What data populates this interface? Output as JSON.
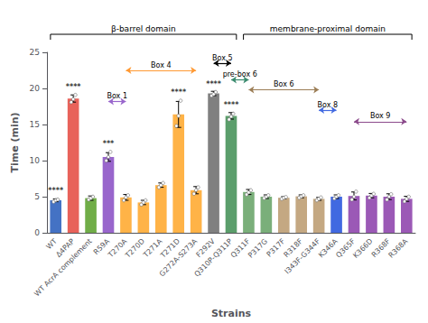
{
  "chart_data": {
    "type": "bar",
    "categories": [
      "WT",
      "Δ4PAP",
      "WT AcrA complement",
      "R59A",
      "T270A",
      "T270D",
      "T271A",
      "T271D",
      "G272A-S273A",
      "F292V",
      "Q310P-Q311P",
      "Q311F",
      "P317G",
      "P317F",
      "R318F",
      "I343F-G344F",
      "K346A",
      "Q365F",
      "K366D",
      "R368F",
      "R368A"
    ],
    "values": [
      4.5,
      18.6,
      4.8,
      10.5,
      4.9,
      4.2,
      6.6,
      16.4,
      5.9,
      19.3,
      16.2,
      5.65,
      5.0,
      4.85,
      5.05,
      4.7,
      5.0,
      5.1,
      5.15,
      5.0,
      4.7
    ],
    "errors": [
      0.2,
      0.5,
      0.3,
      0.6,
      0.4,
      0.3,
      0.3,
      1.8,
      0.5,
      0.3,
      0.45,
      0.35,
      0.25,
      0.15,
      0.2,
      0.2,
      0.25,
      0.55,
      0.3,
      0.4,
      0.35
    ],
    "colors": [
      "#4472C4",
      "#E8625A",
      "#70AD47",
      "#9966CC",
      "#FFB347",
      "#FFB347",
      "#FFB347",
      "#FFB347",
      "#FFB347",
      "#808080",
      "#5B9E6B",
      "#7AAF7A",
      "#7AAF7A",
      "#C4A882",
      "#C4A882",
      "#C4A882",
      "#4169E1",
      "#9B59B6",
      "#9B59B6",
      "#9B59B6",
      "#9B59B6"
    ],
    "points": [
      [
        4.3,
        4.5,
        4.6
      ],
      [
        18.1,
        18.5,
        19.1
      ],
      [
        4.6,
        4.8,
        5.0
      ],
      [
        10.0,
        10.5,
        11.2
      ],
      [
        4.5,
        4.9,
        5.2
      ],
      [
        3.9,
        4.2,
        4.5
      ],
      [
        6.3,
        6.6,
        6.9
      ],
      [
        14.8,
        16.2,
        18.3
      ],
      [
        5.4,
        5.9,
        6.3
      ],
      [
        19.0,
        19.2,
        19.5
      ],
      [
        15.7,
        16.1,
        16.5
      ],
      [
        5.3,
        5.6,
        5.9
      ],
      [
        4.8,
        5.0,
        5.2
      ],
      [
        4.7,
        4.85,
        4.95
      ],
      [
        4.85,
        5.05,
        5.2
      ],
      [
        4.5,
        4.7,
        4.9
      ],
      [
        4.75,
        5.0,
        5.2
      ],
      [
        4.6,
        5.0,
        5.7
      ],
      [
        4.85,
        5.15,
        5.4
      ],
      [
        4.6,
        5.0,
        5.35
      ],
      [
        4.35,
        4.7,
        5.0
      ]
    ],
    "annotations": [
      {
        "text": "****",
        "category": "WT",
        "y": 5.2
      },
      {
        "text": "****",
        "category": "Δ4PAP",
        "y": 19.6
      },
      {
        "text": "***",
        "category": "R59A",
        "y": 11.7
      },
      {
        "text": "****",
        "category": "T271D",
        "y": 18.8
      },
      {
        "text": "****",
        "category": "F292V",
        "y": 20.0
      },
      {
        "text": "****",
        "category": "Q310P-Q311P",
        "y": 17.1
      }
    ],
    "domains": [
      {
        "label": "β-barrel domain",
        "from": "WT",
        "to": "Q310P-Q311P"
      },
      {
        "label": "membrane-proximal domain",
        "from": "Q311F",
        "to": "R368A"
      }
    ],
    "boxes": [
      {
        "label": "Box 1",
        "color": "#9966CC",
        "from": "R59A",
        "to": "T270A",
        "y": 18.2
      },
      {
        "label": "Box 4",
        "color": "#FF9933",
        "from": "T270A",
        "to": "G272A-S273A",
        "y": 22.5
      },
      {
        "label": "Box 5",
        "color": "#000000",
        "from": "F292V",
        "to": "Q310P-Q311P",
        "y": 23.5
      },
      {
        "label": "pre-box 6",
        "color": "#3A8A6E",
        "from": "Q310P-Q311P",
        "to": "Q311F",
        "y": 21.2
      },
      {
        "label": "Box 6",
        "color": "#9B7D55",
        "from": "Q311F",
        "to": "I343F-G344F",
        "y": 19.8
      },
      {
        "label": "Box 8",
        "color": "#4169E1",
        "from": "I343F-G344F",
        "to": "K346A",
        "y": 17.0
      },
      {
        "label": "Box 9",
        "color": "#8B4A8B",
        "from": "Q365F",
        "to": "R368A",
        "y": 15.4
      }
    ],
    "xlabel": "Strains",
    "ylabel": "Time (min)",
    "ylim": [
      0,
      25
    ],
    "yticks": [
      0,
      5,
      10,
      15,
      20,
      25
    ],
    "grid": false
  }
}
